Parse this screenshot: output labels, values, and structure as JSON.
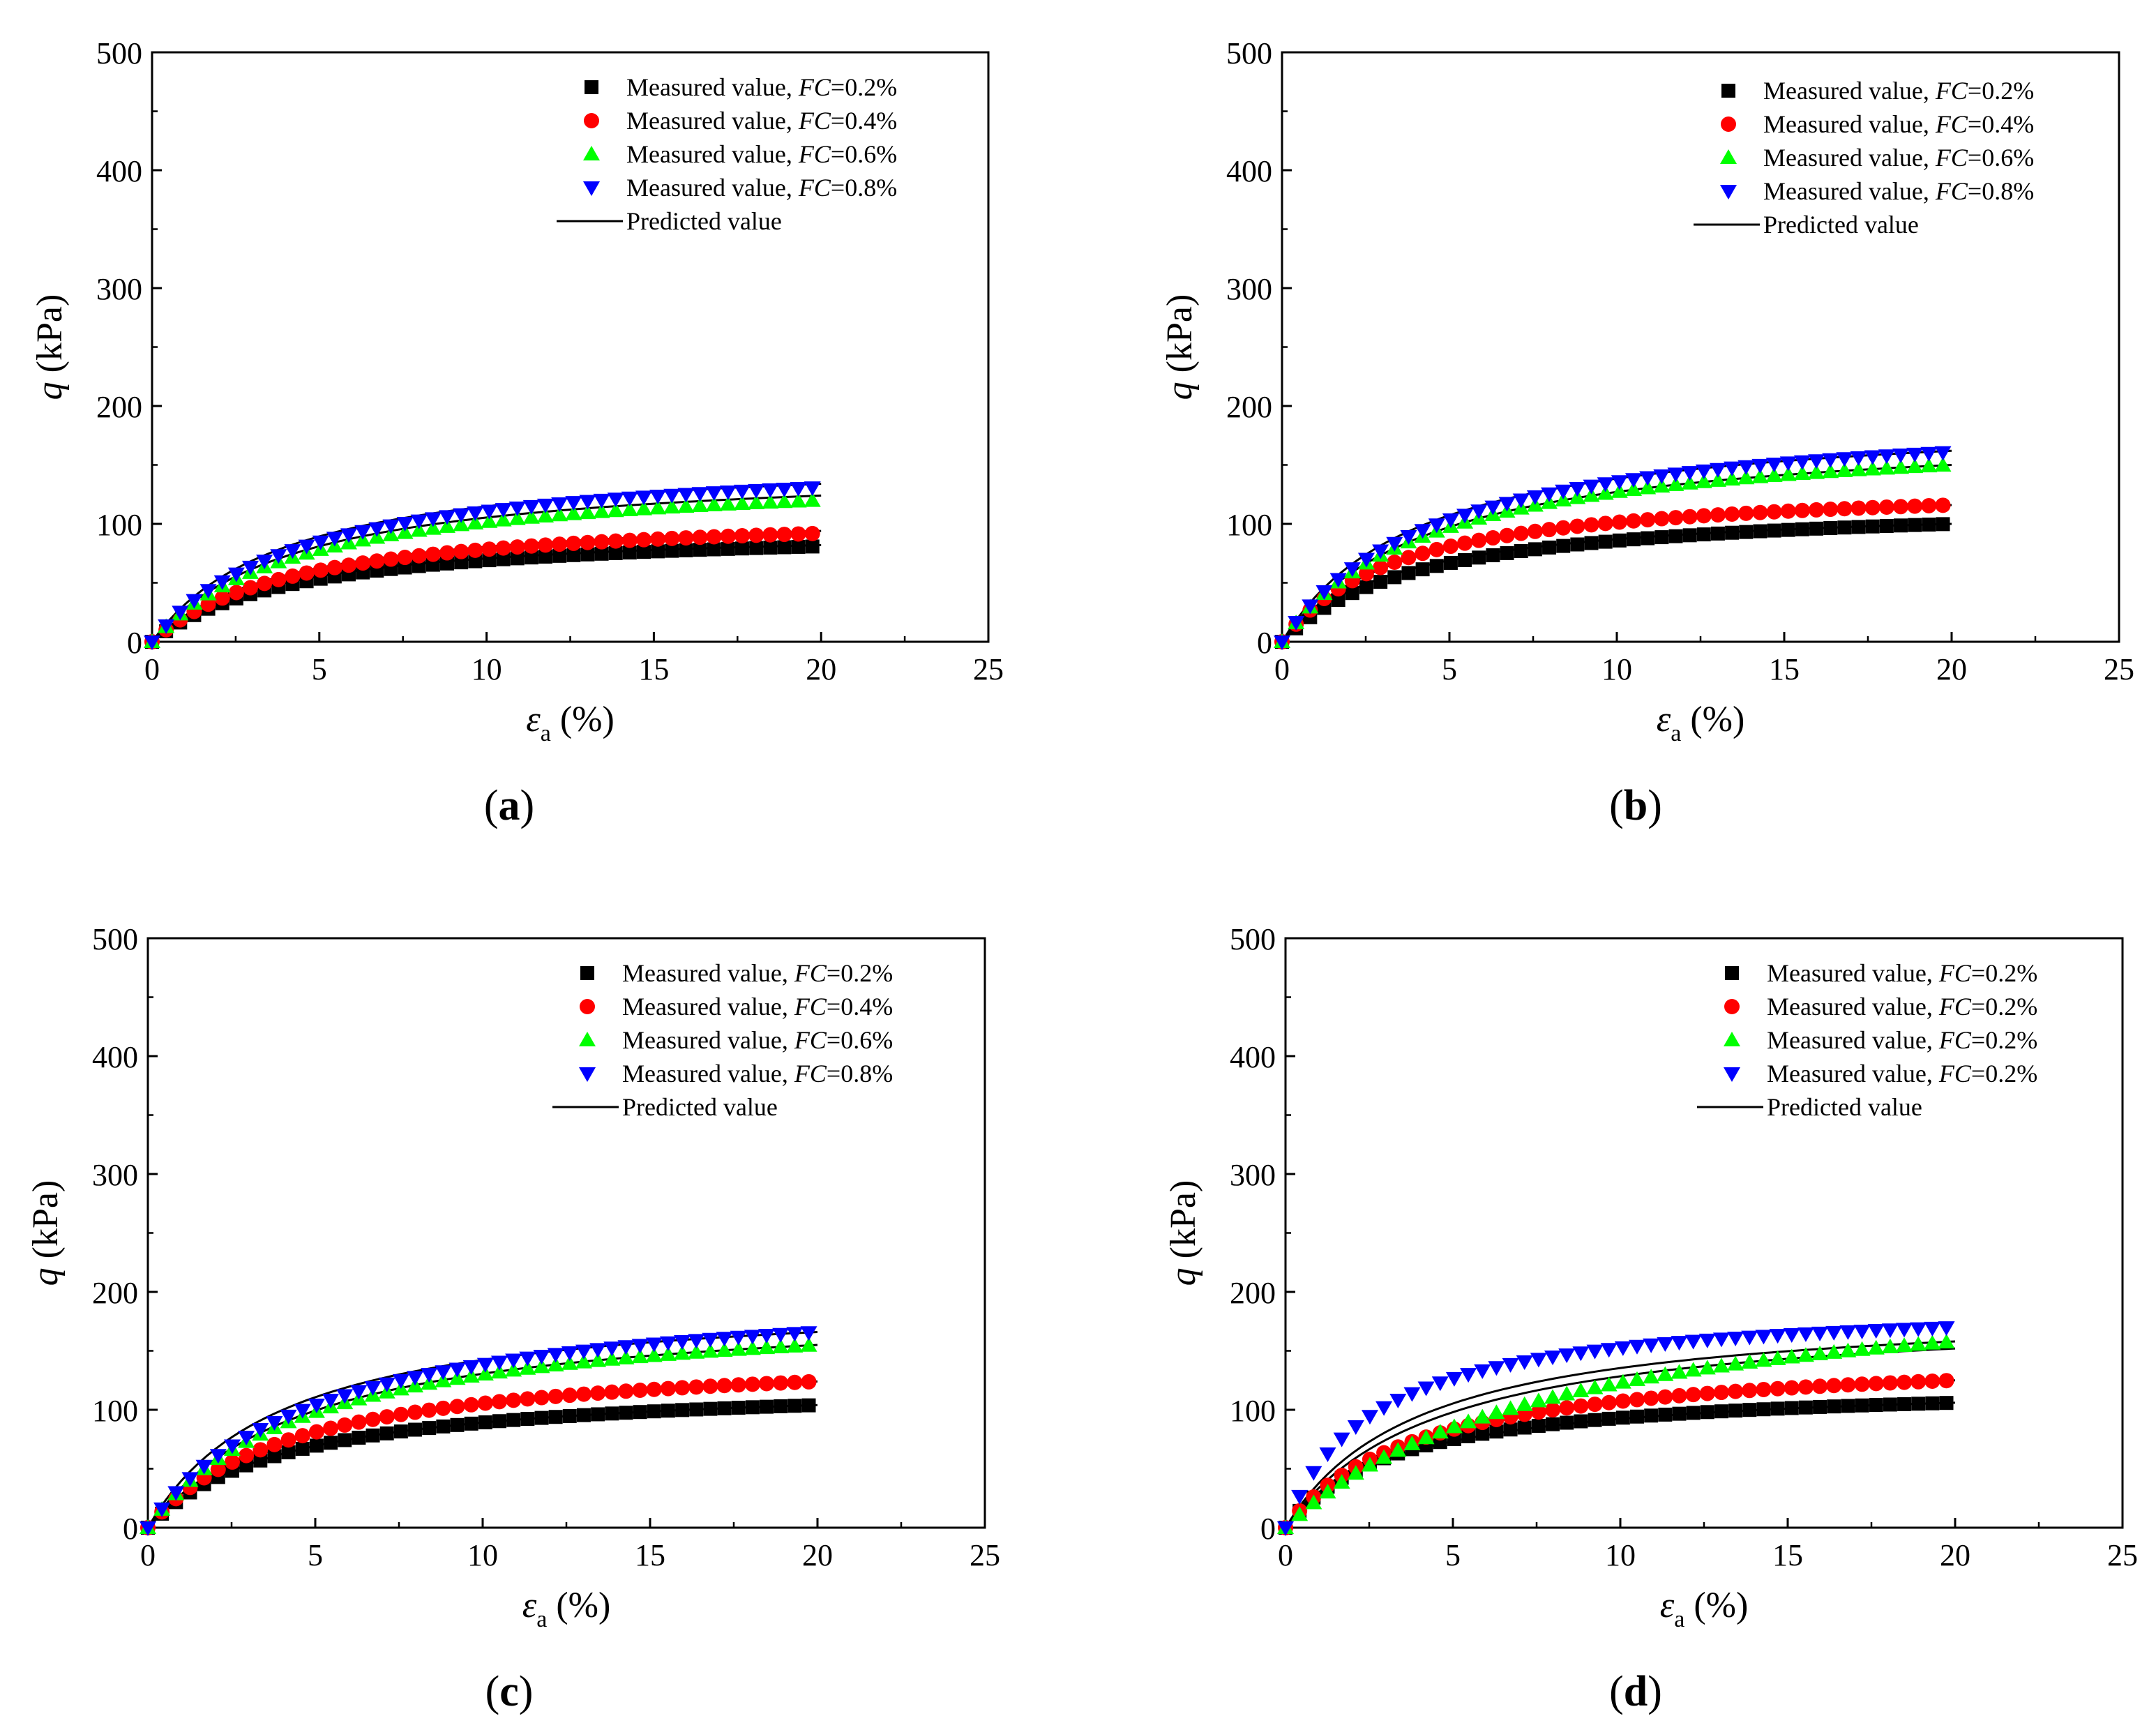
{
  "figure": {
    "panels": [
      {
        "label_open": "(",
        "label_letter": "a",
        "label_close": ")"
      },
      {
        "label_open": "(",
        "label_letter": "b",
        "label_close": ")"
      },
      {
        "label_open": "(",
        "label_letter": "c",
        "label_close": ")"
      },
      {
        "label_open": "(",
        "label_letter": "d",
        "label_close": ")"
      }
    ]
  },
  "chart_data": [
    {
      "type": "scatter",
      "panel": "a",
      "xlabel": "εa (%)",
      "xlabel_symbol": "ε",
      "xlabel_sub": "a",
      "xlabel_unit": "(%)",
      "ylabel": "q (kPa)",
      "ylabel_symbol": "q",
      "ylabel_unit": "(kPa)",
      "xlim": [
        0,
        25
      ],
      "ylim": [
        0,
        500
      ],
      "xticks": [
        "0",
        "5",
        "10",
        "15",
        "20",
        "25"
      ],
      "yticks": [
        "0",
        "100",
        "200",
        "300",
        "400",
        "500"
      ],
      "legend_position": "top-right",
      "series": [
        {
          "name": "Measured value, FC=0.2%",
          "legend_prefix": "Measured value, ",
          "legend_fc": "FC",
          "legend_value": "=0.2%",
          "marker": "square",
          "color": "#000000",
          "qmax": 81,
          "ahalf": 4.2
        },
        {
          "name": "Measured value, FC=0.4%",
          "legend_prefix": "Measured value, ",
          "legend_fc": "FC",
          "legend_value": "=0.4%",
          "marker": "circle",
          "color": "#ff0000",
          "qmax": 92,
          "ahalf": 4.2
        },
        {
          "name": "Measured value, FC=0.6%",
          "legend_prefix": "Measured value, ",
          "legend_fc": "FC",
          "legend_value": "=0.6%",
          "marker": "triangle-up",
          "color": "#00ff00",
          "qmax": 120,
          "ahalf": 4.4
        },
        {
          "name": "Measured value, FC=0.8%",
          "legend_prefix": "Measured value, ",
          "legend_fc": "FC",
          "legend_value": "=0.8%",
          "marker": "triangle-down",
          "color": "#0000ff",
          "qmax": 131,
          "ahalf": 4.5
        }
      ],
      "predicted": {
        "name": "Predicted value",
        "color": "#000000",
        "curves": [
          {
            "qmax": 82,
            "ahalf": 3.8
          },
          {
            "qmax": 94,
            "ahalf": 4.0
          },
          {
            "qmax": 124,
            "ahalf": 4.3
          },
          {
            "qmax": 134,
            "ahalf": 4.0
          }
        ]
      }
    },
    {
      "type": "scatter",
      "panel": "b",
      "xlabel": "εa (%)",
      "xlabel_symbol": "ε",
      "xlabel_sub": "a",
      "xlabel_unit": "(%)",
      "ylabel": "q (kPa)",
      "ylabel_symbol": "q",
      "ylabel_unit": "(kPa)",
      "xlim": [
        0,
        25
      ],
      "ylim": [
        0,
        500
      ],
      "xticks": [
        "0",
        "5",
        "10",
        "15",
        "20",
        "25"
      ],
      "yticks": [
        "0",
        "100",
        "200",
        "300",
        "400",
        "500"
      ],
      "legend_position": "top-right",
      "series": [
        {
          "name": "Measured value, FC=0.2%",
          "legend_prefix": "Measured value, ",
          "legend_fc": "FC",
          "legend_value": "=0.2%",
          "marker": "square",
          "color": "#000000",
          "qmax": 100,
          "ahalf": 4.0
        },
        {
          "name": "Measured value, FC=0.4%",
          "legend_prefix": "Measured value, ",
          "legend_fc": "FC",
          "legend_value": "=0.4%",
          "marker": "circle",
          "color": "#ff0000",
          "qmax": 116,
          "ahalf": 3.4
        },
        {
          "name": "Measured value, FC=0.6%",
          "legend_prefix": "Measured value, ",
          "legend_fc": "FC",
          "legend_value": "=0.6%",
          "marker": "triangle-up",
          "color": "#00ff00",
          "qmax": 150,
          "ahalf": 4.4
        },
        {
          "name": "Measured value, FC=0.8%",
          "legend_prefix": "Measured value, ",
          "legend_fc": "FC",
          "legend_value": "=0.8%",
          "marker": "triangle-down",
          "color": "#0000ff",
          "qmax": 161,
          "ahalf": 4.6
        }
      ],
      "predicted": {
        "name": "Predicted value",
        "color": "#000000",
        "curves": [
          {
            "qmax": 100,
            "ahalf": 3.5
          },
          {
            "qmax": 116,
            "ahalf": 3.6
          },
          {
            "qmax": 150,
            "ahalf": 4.4
          },
          {
            "qmax": 162,
            "ahalf": 4.1
          }
        ]
      }
    },
    {
      "type": "scatter",
      "panel": "c",
      "xlabel": "εa (%)",
      "xlabel_symbol": "ε",
      "xlabel_sub": "a",
      "xlabel_unit": "(%)",
      "ylabel": "q (kPa)",
      "ylabel_symbol": "q",
      "ylabel_unit": "(kPa)",
      "xlim": [
        0,
        25
      ],
      "ylim": [
        0,
        500
      ],
      "xticks": [
        "0",
        "5",
        "10",
        "15",
        "20",
        "25"
      ],
      "yticks": [
        "0",
        "100",
        "200",
        "300",
        "400",
        "500"
      ],
      "legend_position": "top-right",
      "series": [
        {
          "name": "Measured value, FC=0.2%",
          "legend_prefix": "Measured value, ",
          "legend_fc": "FC",
          "legend_value": "=0.2%",
          "marker": "square",
          "color": "#000000",
          "qmax": 104,
          "ahalf": 4.0
        },
        {
          "name": "Measured value, FC=0.4%",
          "legend_prefix": "Measured value, ",
          "legend_fc": "FC",
          "legend_value": "=0.4%",
          "marker": "circle",
          "color": "#ff0000",
          "qmax": 124,
          "ahalf": 4.3
        },
        {
          "name": "Measured value, FC=0.6%",
          "legend_prefix": "Measured value, ",
          "legend_fc": "FC",
          "legend_value": "=0.6%",
          "marker": "triangle-up",
          "color": "#00ff00",
          "qmax": 155,
          "ahalf": 4.8
        },
        {
          "name": "Measured value, FC=0.8%",
          "legend_prefix": "Measured value, ",
          "legend_fc": "FC",
          "legend_value": "=0.8%",
          "marker": "triangle-down",
          "color": "#0000ff",
          "qmax": 166,
          "ahalf": 5.0
        }
      ],
      "predicted": {
        "name": "Predicted value",
        "color": "#000000",
        "curves": [
          {
            "qmax": 104,
            "ahalf": 4.0
          },
          {
            "qmax": 124,
            "ahalf": 4.3
          },
          {
            "qmax": 155,
            "ahalf": 4.6
          },
          {
            "qmax": 166,
            "ahalf": 4.0
          }
        ]
      }
    },
    {
      "type": "scatter",
      "panel": "d",
      "xlabel": "εa (%)",
      "xlabel_symbol": "ε",
      "xlabel_sub": "a",
      "xlabel_unit": "(%)",
      "ylabel": "q (kPa)",
      "ylabel_symbol": "q",
      "ylabel_unit": "(kPa)",
      "xlim": [
        0,
        25
      ],
      "ylim": [
        0,
        500
      ],
      "xticks": [
        "0",
        "5",
        "10",
        "15",
        "20",
        "25"
      ],
      "yticks": [
        "0",
        "100",
        "200",
        "300",
        "400",
        "500"
      ],
      "legend_position": "top-right",
      "series": [
        {
          "name": "Measured value, FC=0.2%",
          "legend_prefix": "Measured value, ",
          "legend_fc": "FC",
          "legend_value": "=0.2%",
          "marker": "square",
          "color": "#000000",
          "qmax": 106,
          "ahalf": 3.2
        },
        {
          "name": "Measured value, FC=0.2%",
          "legend_prefix": "Measured value, ",
          "legend_fc": "FC",
          "legend_value": "=0.2%",
          "marker": "circle",
          "color": "#ff0000",
          "qmax": 125,
          "ahalf": 4.0
        },
        {
          "name": "Measured value, FC=0.2%",
          "legend_prefix": "Measured value, ",
          "legend_fc": "FC",
          "legend_value": "=0.2%",
          "marker": "triangle-up",
          "color": "#00ff00",
          "qmax": 158,
          "ahalf": 8.0
        },
        {
          "name": "Measured value, FC=0.2%",
          "legend_prefix": "Measured value, ",
          "legend_fc": "FC",
          "legend_value": "=0.2%",
          "marker": "triangle-down",
          "color": "#0000ff",
          "qmax": 170,
          "ahalf": 2.6
        }
      ],
      "predicted": {
        "name": "Predicted value",
        "color": "#000000",
        "curves": [
          {
            "qmax": 106,
            "ahalf": 3.5
          },
          {
            "qmax": 125,
            "ahalf": 4.0
          },
          {
            "qmax": 152,
            "ahalf": 4.5
          },
          {
            "qmax": 158,
            "ahalf": 4.0
          }
        ]
      }
    }
  ]
}
